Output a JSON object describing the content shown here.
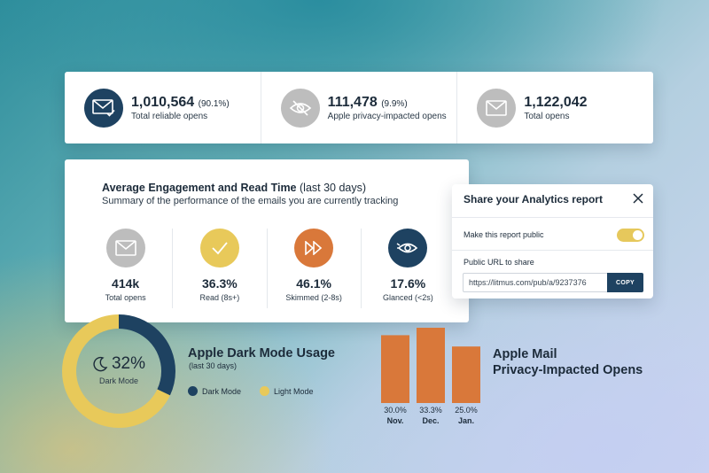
{
  "colors": {
    "navy": "#1e4261",
    "gray": "#bdbdbd",
    "yellow": "#e8c95a",
    "orange": "#d9783a",
    "bar": "#d9783a"
  },
  "stats": [
    {
      "value": "1,010,564",
      "pct": "(90.1%)",
      "label": "Total reliable opens",
      "icon": "envelope-check-icon",
      "color": "#1e4261"
    },
    {
      "value": "111,478",
      "pct": "(9.9%)",
      "label": "Apple privacy-impacted opens",
      "icon": "eye-slash-icon",
      "color": "#bdbdbd"
    },
    {
      "value": "1,122,042",
      "pct": "",
      "label": "Total opens",
      "icon": "envelope-icon",
      "color": "#bdbdbd"
    }
  ],
  "engagement": {
    "title": "Average Engagement and Read Time",
    "title_suffix": "(last 30 days)",
    "subtitle": "Summary of the performance of the emails you are currently tracking",
    "items": [
      {
        "value": "414k",
        "label": "Total opens",
        "icon": "envelope-icon",
        "color": "#bdbdbd"
      },
      {
        "value": "36.3%",
        "label": "Read (8s+)",
        "icon": "check-icon",
        "color": "#e8c95a"
      },
      {
        "value": "46.1%",
        "label": "Skimmed (2-8s)",
        "icon": "fast-forward-icon",
        "color": "#d9783a"
      },
      {
        "value": "17.6%",
        "label": "Glanced (<2s)",
        "icon": "eye-glance-icon",
        "color": "#1e4261"
      }
    ]
  },
  "share": {
    "title": "Share your Analytics report",
    "public_label": "Make this report public",
    "public_on": true,
    "url_label": "Public URL to share",
    "url": "https://litmus.com/pub/a/9237376",
    "copy_label": "COPY"
  },
  "dark_mode": {
    "title": "Apple Dark Mode Usage",
    "subtitle": "(last 30 days)",
    "center_value": "32%",
    "center_label": "Dark Mode",
    "legend_dark": "Dark Mode",
    "legend_light": "Light Mode"
  },
  "privacy": {
    "title_line1": "Apple Mail",
    "title_line2": "Privacy-Impacted Opens"
  },
  "chart_data": [
    {
      "type": "pie",
      "labels": [
        "Dark Mode",
        "Light Mode"
      ],
      "values": [
        32,
        68
      ]
    },
    {
      "type": "bar",
      "categories": [
        "Nov.",
        "Dec.",
        "Jan."
      ],
      "values": [
        30.0,
        33.3,
        25.0
      ],
      "value_labels": [
        "30.0%",
        "33.3%",
        "25.0%"
      ]
    }
  ]
}
